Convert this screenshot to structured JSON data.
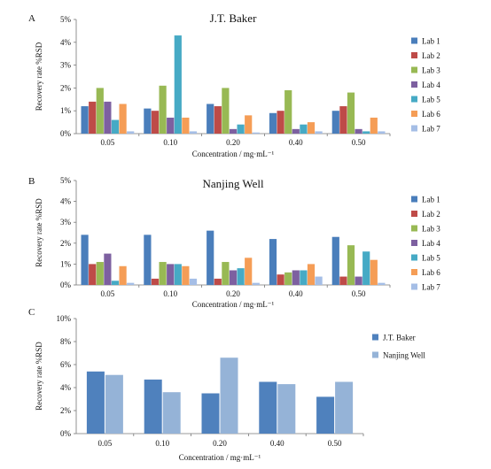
{
  "chart_data": [
    {
      "panel_label": "A",
      "type": "bar",
      "title": "J.T. Baker",
      "xlabel": "Concentration / mg·mL⁻¹",
      "ylabel": "Recovery rate %RSD",
      "ylim": [
        0,
        5
      ],
      "yticks": [
        "0%",
        "1%",
        "2%",
        "3%",
        "4%",
        "5%"
      ],
      "categories": [
        "0.05",
        "0.10",
        "0.20",
        "0.40",
        "0.50"
      ],
      "legend_position": "right",
      "series": [
        {
          "name": "Lab 1",
          "color": "#4a7ebb",
          "values": [
            1.2,
            1.1,
            1.3,
            0.9,
            1.0
          ]
        },
        {
          "name": "Lab 2",
          "color": "#be4b48",
          "values": [
            1.4,
            1.0,
            1.2,
            1.0,
            1.2
          ]
        },
        {
          "name": "Lab 3",
          "color": "#98b954",
          "values": [
            2.0,
            2.1,
            2.0,
            1.9,
            1.8
          ]
        },
        {
          "name": "Lab 4",
          "color": "#7d60a0",
          "values": [
            1.4,
            0.7,
            0.2,
            0.2,
            0.2
          ]
        },
        {
          "name": "Lab 5",
          "color": "#46aac5",
          "values": [
            0.6,
            4.3,
            0.4,
            0.4,
            0.1
          ]
        },
        {
          "name": "Lab 6",
          "color": "#f59d56",
          "values": [
            1.3,
            0.7,
            0.8,
            0.5,
            0.7
          ]
        },
        {
          "name": "Lab 7",
          "color": "#a5bee6",
          "values": [
            0.1,
            0.1,
            0.05,
            0.1,
            0.1
          ]
        }
      ]
    },
    {
      "panel_label": "B",
      "type": "bar",
      "title": "Nanjing Well",
      "xlabel": "Concentration / mg·mL⁻¹",
      "ylabel": "Recovery rate %RSD",
      "ylim": [
        0,
        5
      ],
      "yticks": [
        "0%",
        "1%",
        "2%",
        "3%",
        "4%",
        "5%"
      ],
      "categories": [
        "0.05",
        "0.10",
        "0.20",
        "0.40",
        "0.50"
      ],
      "legend_position": "right",
      "series": [
        {
          "name": "Lab 1",
          "color": "#4a7ebb",
          "values": [
            2.4,
            2.4,
            2.6,
            2.2,
            2.3
          ]
        },
        {
          "name": "Lab 2",
          "color": "#be4b48",
          "values": [
            1.0,
            0.3,
            0.3,
            0.5,
            0.4
          ]
        },
        {
          "name": "Lab 3",
          "color": "#98b954",
          "values": [
            1.1,
            1.1,
            1.1,
            0.6,
            1.9
          ]
        },
        {
          "name": "Lab 4",
          "color": "#7d60a0",
          "values": [
            1.5,
            1.0,
            0.7,
            0.7,
            0.4
          ]
        },
        {
          "name": "Lab 5",
          "color": "#46aac5",
          "values": [
            0.2,
            1.0,
            0.8,
            0.7,
            1.6
          ]
        },
        {
          "name": "Lab 6",
          "color": "#f59d56",
          "values": [
            0.9,
            0.9,
            1.3,
            1.0,
            1.2
          ]
        },
        {
          "name": "Lab 7",
          "color": "#a5bee6",
          "values": [
            0.1,
            0.3,
            0.1,
            0.4,
            0.1
          ]
        }
      ]
    },
    {
      "panel_label": "C",
      "type": "bar",
      "title": "",
      "xlabel": "Concentration / mg·mL⁻¹",
      "ylabel": "Recovery rate %RSD",
      "ylim": [
        0,
        10
      ],
      "yticks": [
        "0%",
        "2%",
        "4%",
        "6%",
        "8%",
        "10%"
      ],
      "categories": [
        "0.05",
        "0.10",
        "0.20",
        "0.40",
        "0.50"
      ],
      "legend_position": "right",
      "series": [
        {
          "name": "J.T. Baker",
          "color": "#4f81bd",
          "values": [
            5.4,
            4.7,
            3.5,
            4.5,
            3.2
          ]
        },
        {
          "name": "Nanjing Well",
          "color": "#95b3d7",
          "values": [
            5.1,
            3.6,
            6.6,
            4.3,
            4.5
          ]
        }
      ]
    }
  ]
}
